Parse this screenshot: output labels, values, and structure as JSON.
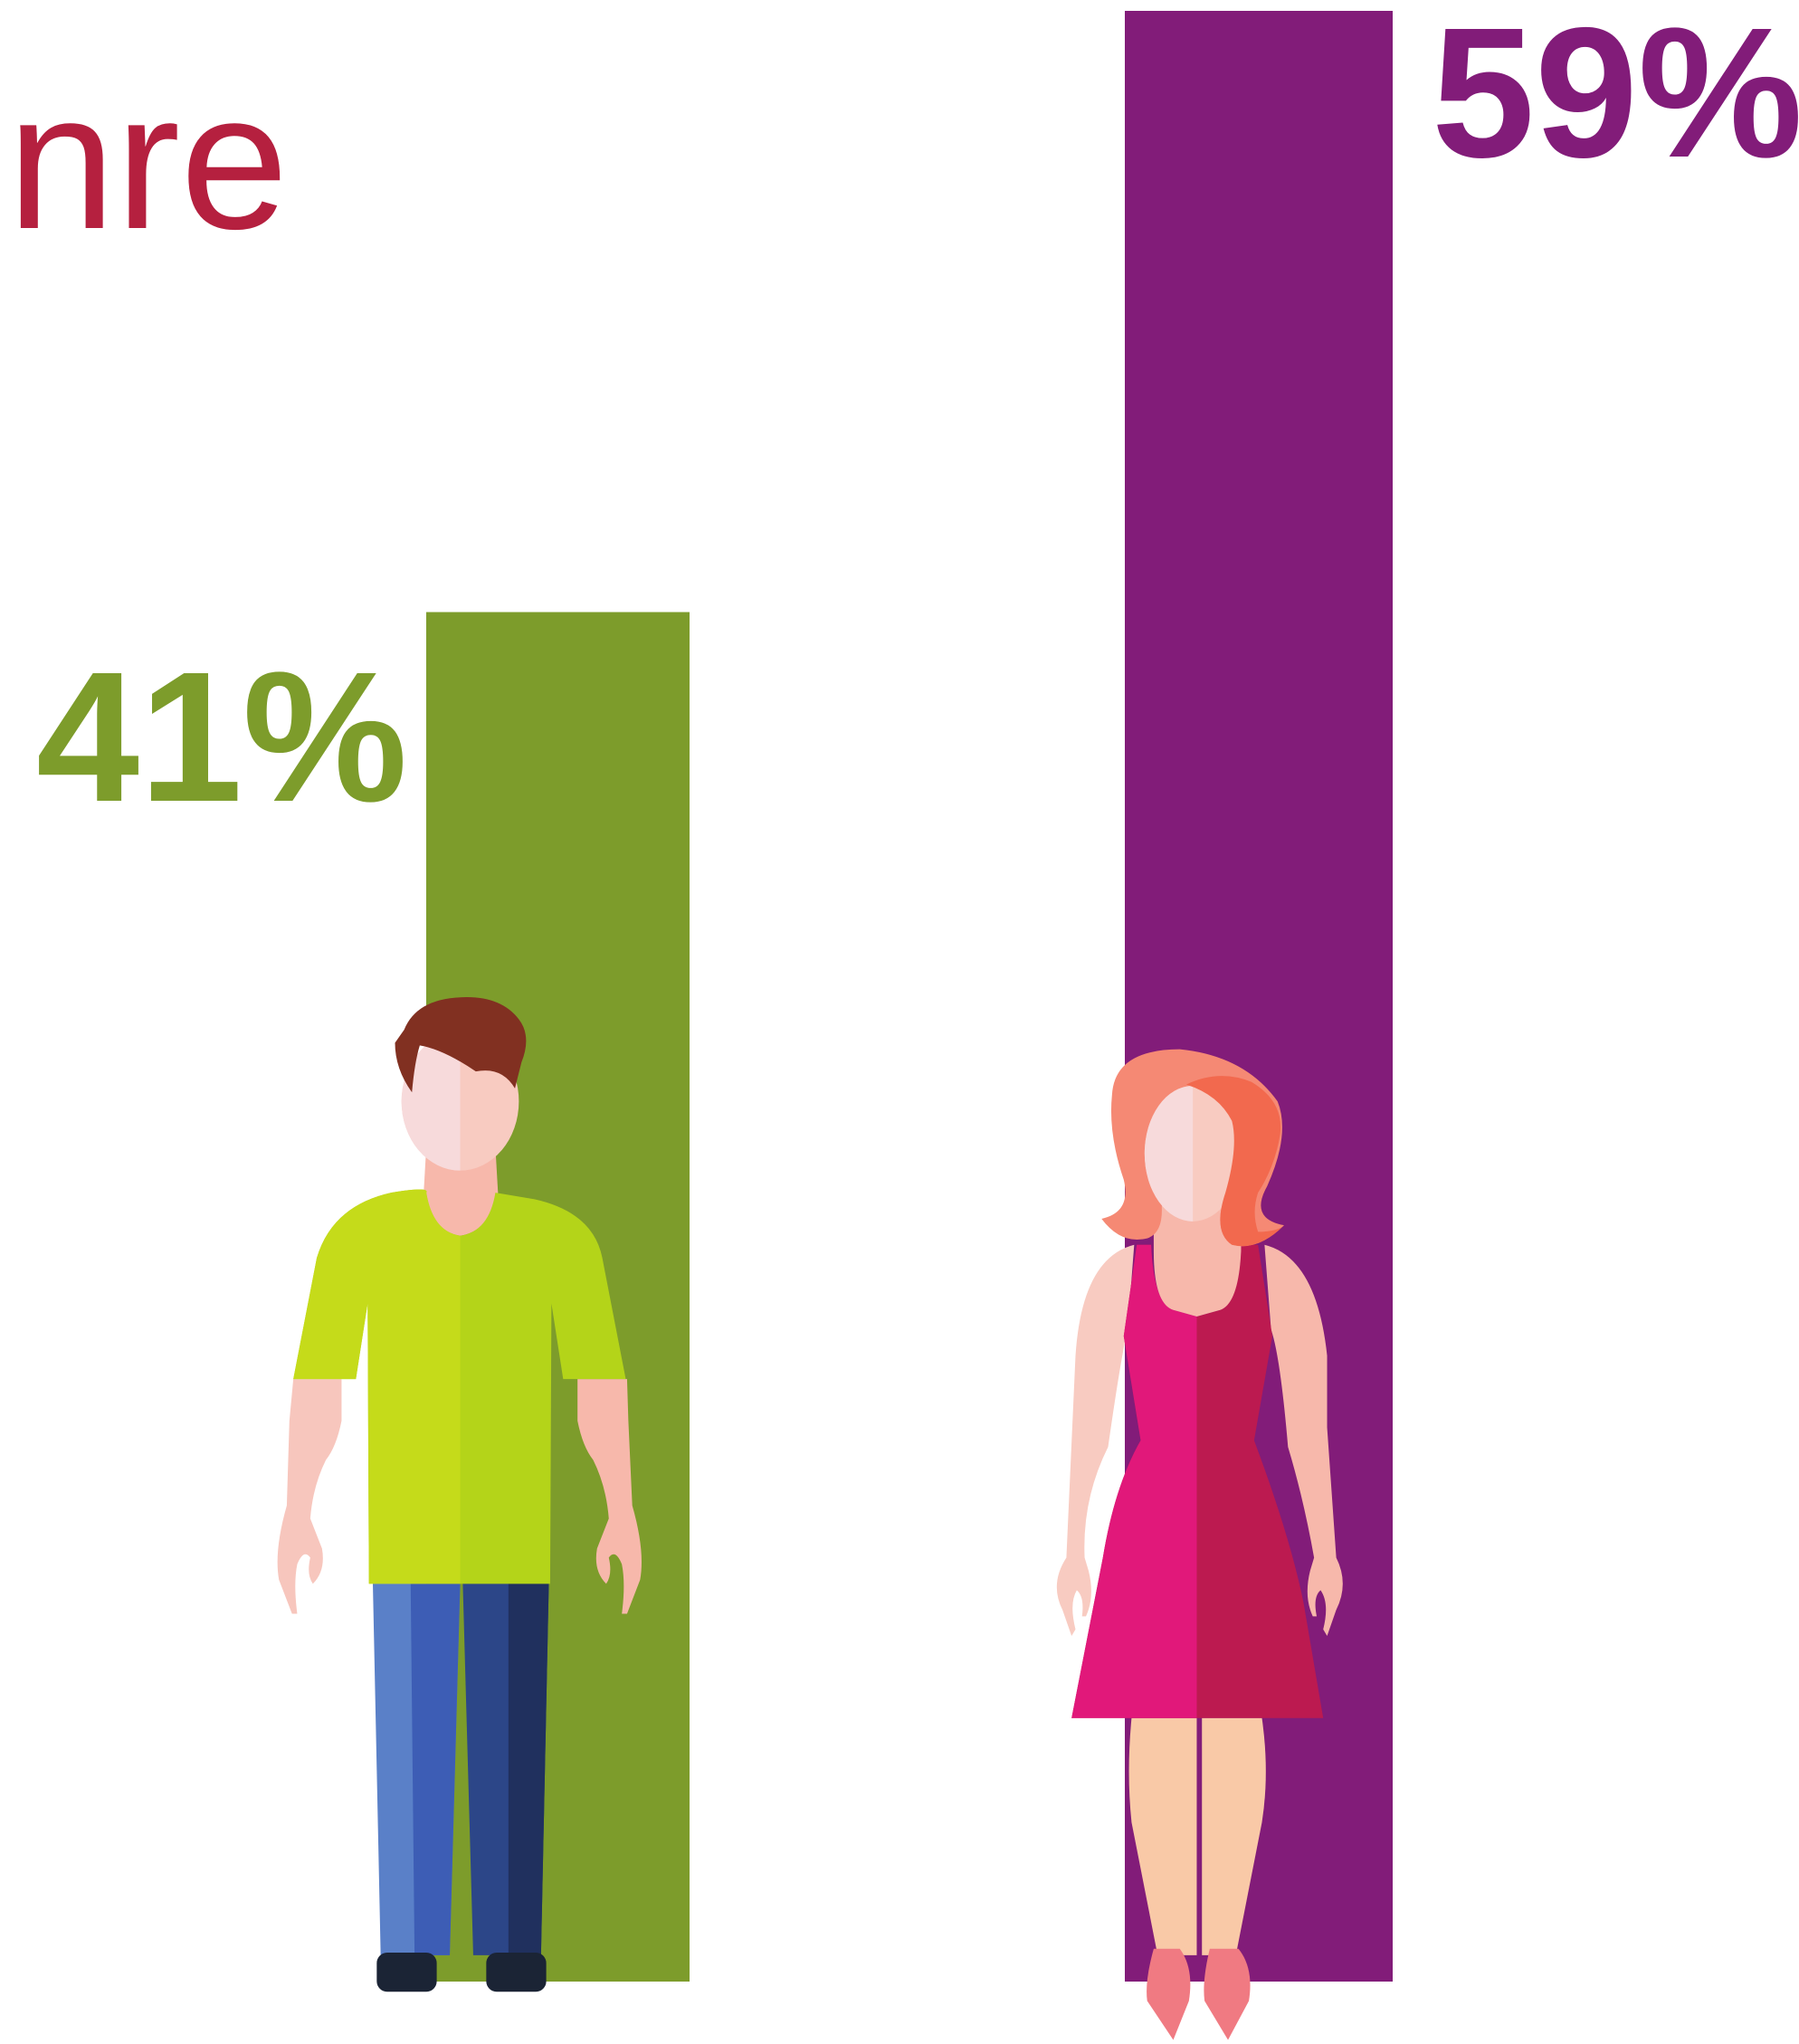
{
  "chart_data": {
    "type": "bar",
    "title": "nre",
    "title_color": "#b5203f",
    "categories": [
      null,
      null
    ],
    "values": [
      41,
      59
    ],
    "value_labels": [
      "41%",
      "59%"
    ],
    "colors": [
      "#7d9c2b",
      "#821c79"
    ],
    "ylim": [
      0,
      59
    ]
  }
}
